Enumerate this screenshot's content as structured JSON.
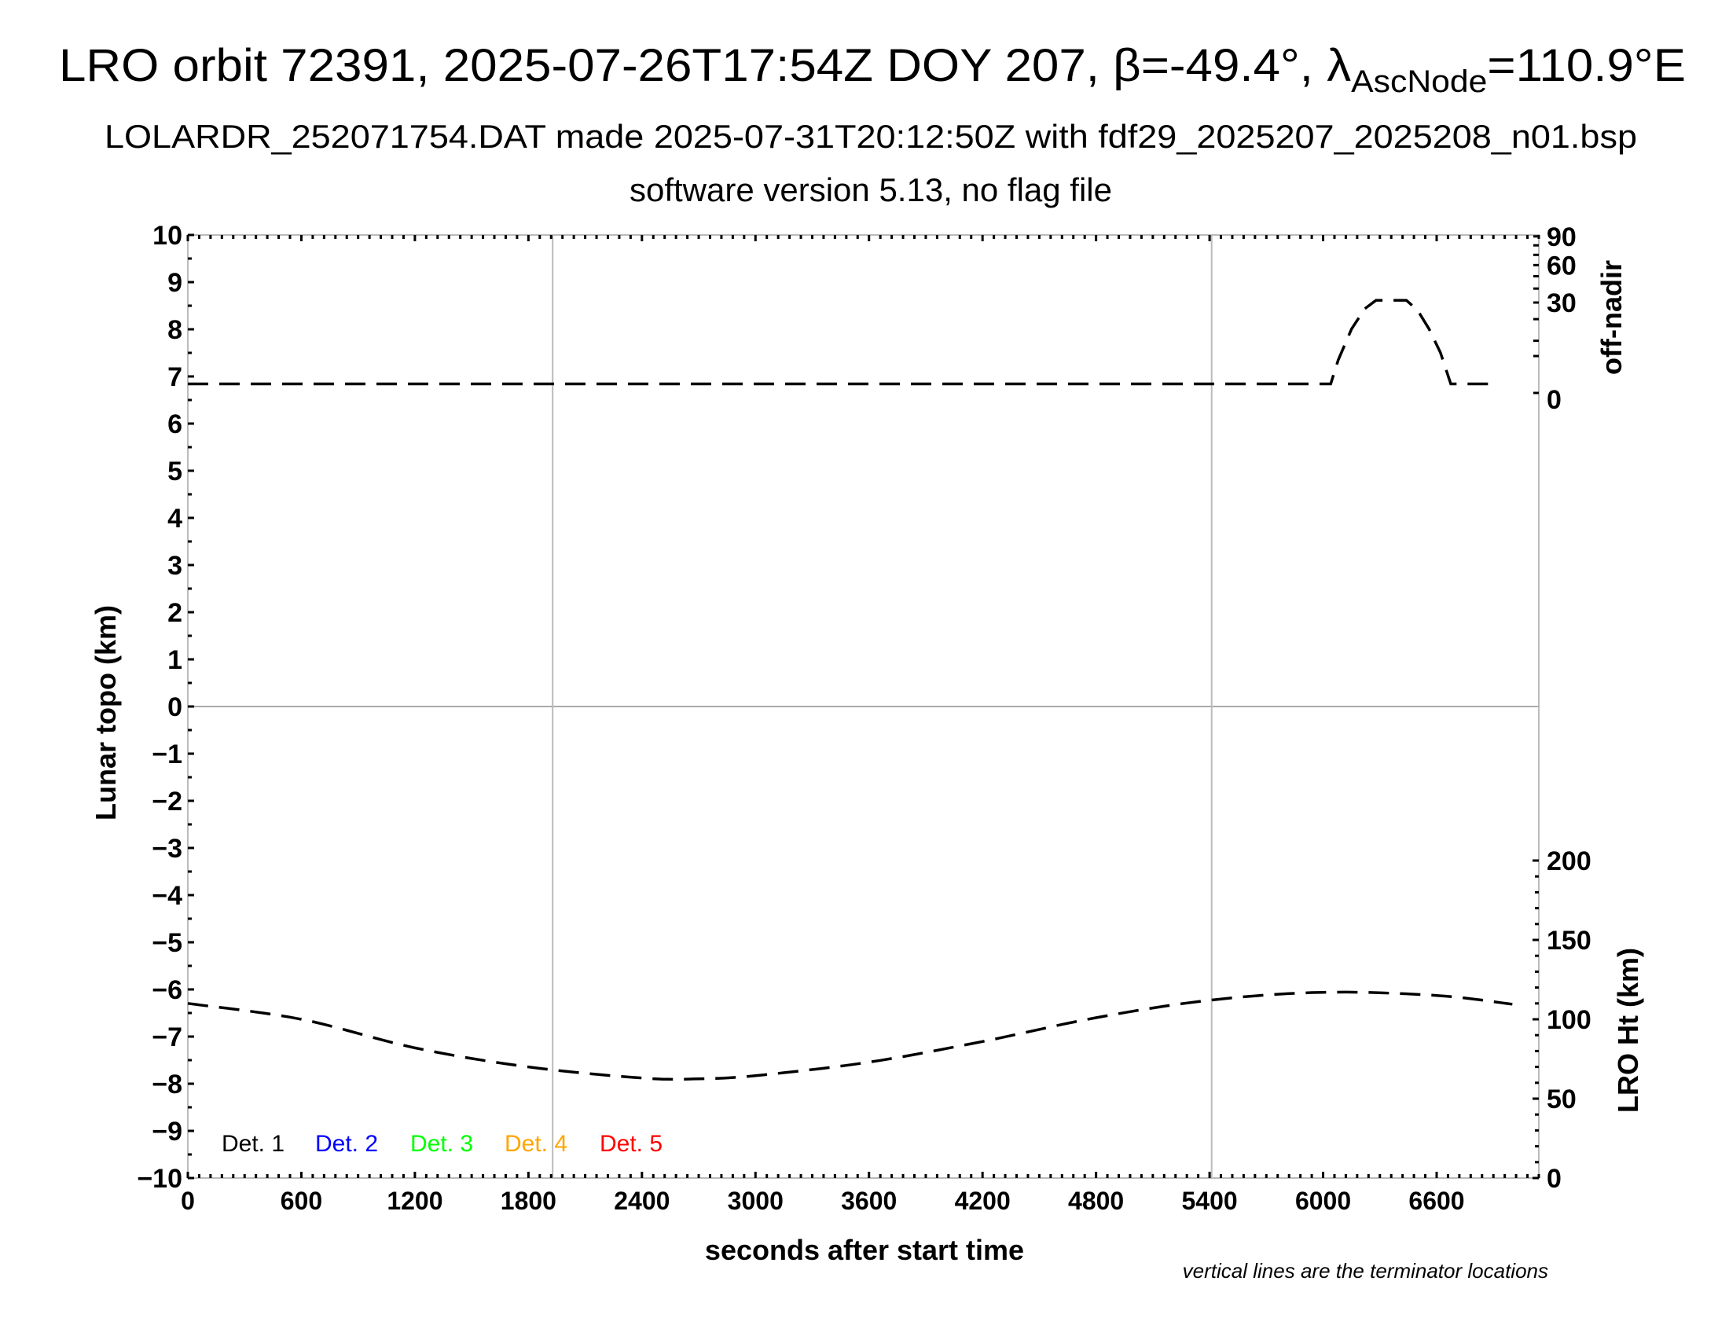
{
  "chart_data": {
    "type": "line",
    "title": {
      "main": "LRO orbit 72391, 2025-07-26T17:54Z DOY 207, β=-49.4°, λ",
      "subscript": "AscNode",
      "suffix": "=110.9°E"
    },
    "subtitle": "LOLARDR_252071754.DAT made 2025-07-31T20:12:50Z with fdf29_2025207_2025208_n01.bsp",
    "subtitle2": "software version 5.13, no flag file",
    "xlabel": "seconds after start time",
    "ylabel_left": "Lunar topo (km)",
    "ylabel_right_top": "off-nadir",
    "ylabel_right_bottom": "LRO Ht (km)",
    "note": "vertical lines are the terminator locations",
    "xlim": [
      0,
      7140
    ],
    "ylim_left": [
      -10,
      10
    ],
    "x_ticks": [
      0,
      600,
      1200,
      1800,
      2400,
      3000,
      3600,
      4200,
      4800,
      5400,
      6000,
      6600
    ],
    "y_ticks_left": [
      "10",
      "9",
      "8",
      "7",
      "6",
      "5",
      "4",
      "3",
      "2",
      "1",
      "0",
      "−1",
      "−2",
      "−3",
      "−4",
      "−5",
      "−6",
      "−7",
      "−8",
      "−9",
      "−10"
    ],
    "y_ticks_right_top": [
      0,
      30,
      60,
      90
    ],
    "right_top_scale": "sqrt",
    "y_ticks_right_bottom": [
      0,
      50,
      100,
      150,
      200
    ],
    "terminator_lines_x": [
      1928,
      5411
    ],
    "grid": "zero line and terminator lines only",
    "legend": {
      "placement": "bottom-left",
      "entries": [
        {
          "label": "Det. 1",
          "color": "#000000"
        },
        {
          "label": "Det. 2",
          "color": "#0000ff"
        },
        {
          "label": "Det. 3",
          "color": "#00ff00"
        },
        {
          "label": "Det. 4",
          "color": "#ffa500"
        },
        {
          "label": "Det. 5",
          "color": "#ff0000"
        }
      ]
    },
    "series": [
      {
        "axis": "right_top",
        "style": "dashed",
        "color": "#000000",
        "x": [
          0,
          1000,
          2000,
          3000,
          4000,
          5000,
          6040,
          6080,
          6150,
          6220,
          6280,
          6440,
          6500,
          6560,
          6620,
          6675,
          6700,
          6925
        ],
        "y": [
          0.3,
          0.3,
          0.3,
          0.3,
          0.3,
          0.3,
          0.3,
          4,
          15,
          26,
          31.5,
          31.5,
          25,
          15,
          6,
          0.3,
          0.3,
          0.3
        ]
      },
      {
        "axis": "right_bottom",
        "style": "dashed",
        "color": "#000000",
        "x": [
          0,
          600,
          1200,
          1800,
          2400,
          2700,
          3000,
          3600,
          4200,
          4800,
          5400,
          6000,
          6600,
          7000
        ],
        "y": [
          110,
          100,
          82,
          70,
          63,
          62.5,
          64.5,
          73,
          86,
          101,
          112,
          117,
          115,
          109.5
        ]
      }
    ]
  }
}
